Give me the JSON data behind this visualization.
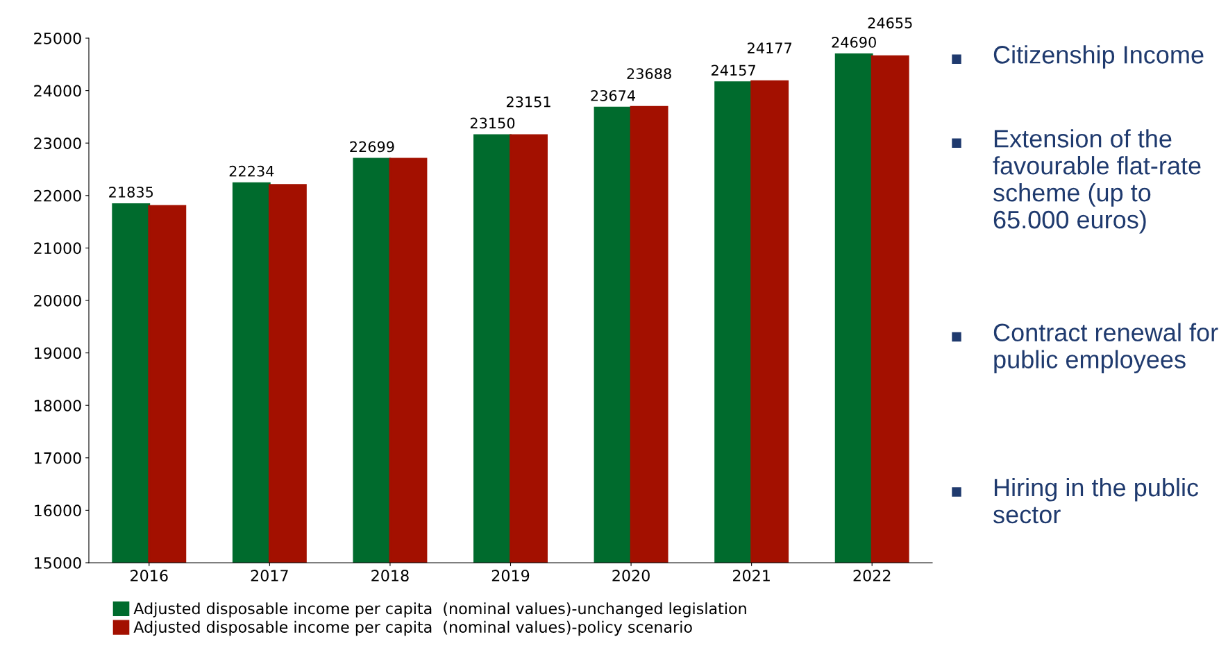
{
  "chart_data": {
    "type": "bar",
    "categories": [
      "2016",
      "2017",
      "2018",
      "2019",
      "2020",
      "2021",
      "2022"
    ],
    "series": [
      {
        "name": "Adjusted disposable income per capita  (nominal values)-unchanged legislation",
        "color": "#006b2d",
        "values": [
          21835,
          22234,
          22699,
          23150,
          23674,
          24157,
          24690
        ],
        "value_labels": [
          "21835",
          "22234",
          "22699",
          "23150",
          "23674",
          "24157",
          "24690"
        ]
      },
      {
        "name": "Adjusted disposable income per capita  (nominal values)-policy scenario",
        "color": "#a31000",
        "values": [
          21800,
          22200,
          22700,
          23151,
          23688,
          24177,
          24655
        ],
        "value_labels": [
          null,
          null,
          null,
          "23151",
          "23688",
          "24177",
          "24655"
        ]
      }
    ],
    "ylim": [
      15000,
      25000
    ],
    "yticks": [
      15000,
      16000,
      17000,
      18000,
      19000,
      20000,
      21000,
      22000,
      23000,
      24000,
      25000
    ],
    "grid": false,
    "legend": "bottom",
    "annotations": [
      "Citizenship Income",
      "Extension of the favourable flat-rate scheme (up to 65.000 euros)",
      "Contract renewal for public employees",
      "Hiring in the public sector"
    ]
  }
}
